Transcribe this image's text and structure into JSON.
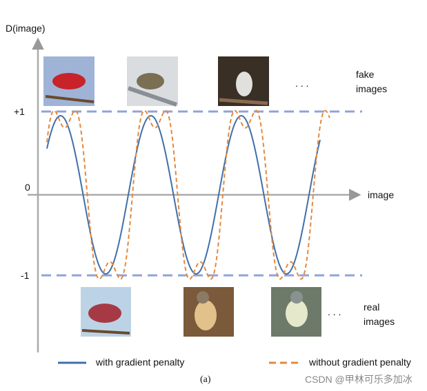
{
  "axis": {
    "y_label": "D(image)",
    "x_label": "image",
    "ticks": [
      "+1",
      "0",
      "-1"
    ]
  },
  "fake_label": [
    "fake",
    "images"
  ],
  "real_label": [
    "real",
    "images"
  ],
  "fake_ellipsis": ". . .",
  "real_ellipsis": ". . .",
  "legend": [
    "with gradient penalty",
    "without gradient penalty"
  ],
  "caption": "(a)",
  "watermark": "CSDN @甲林可乐多加冰"
}
